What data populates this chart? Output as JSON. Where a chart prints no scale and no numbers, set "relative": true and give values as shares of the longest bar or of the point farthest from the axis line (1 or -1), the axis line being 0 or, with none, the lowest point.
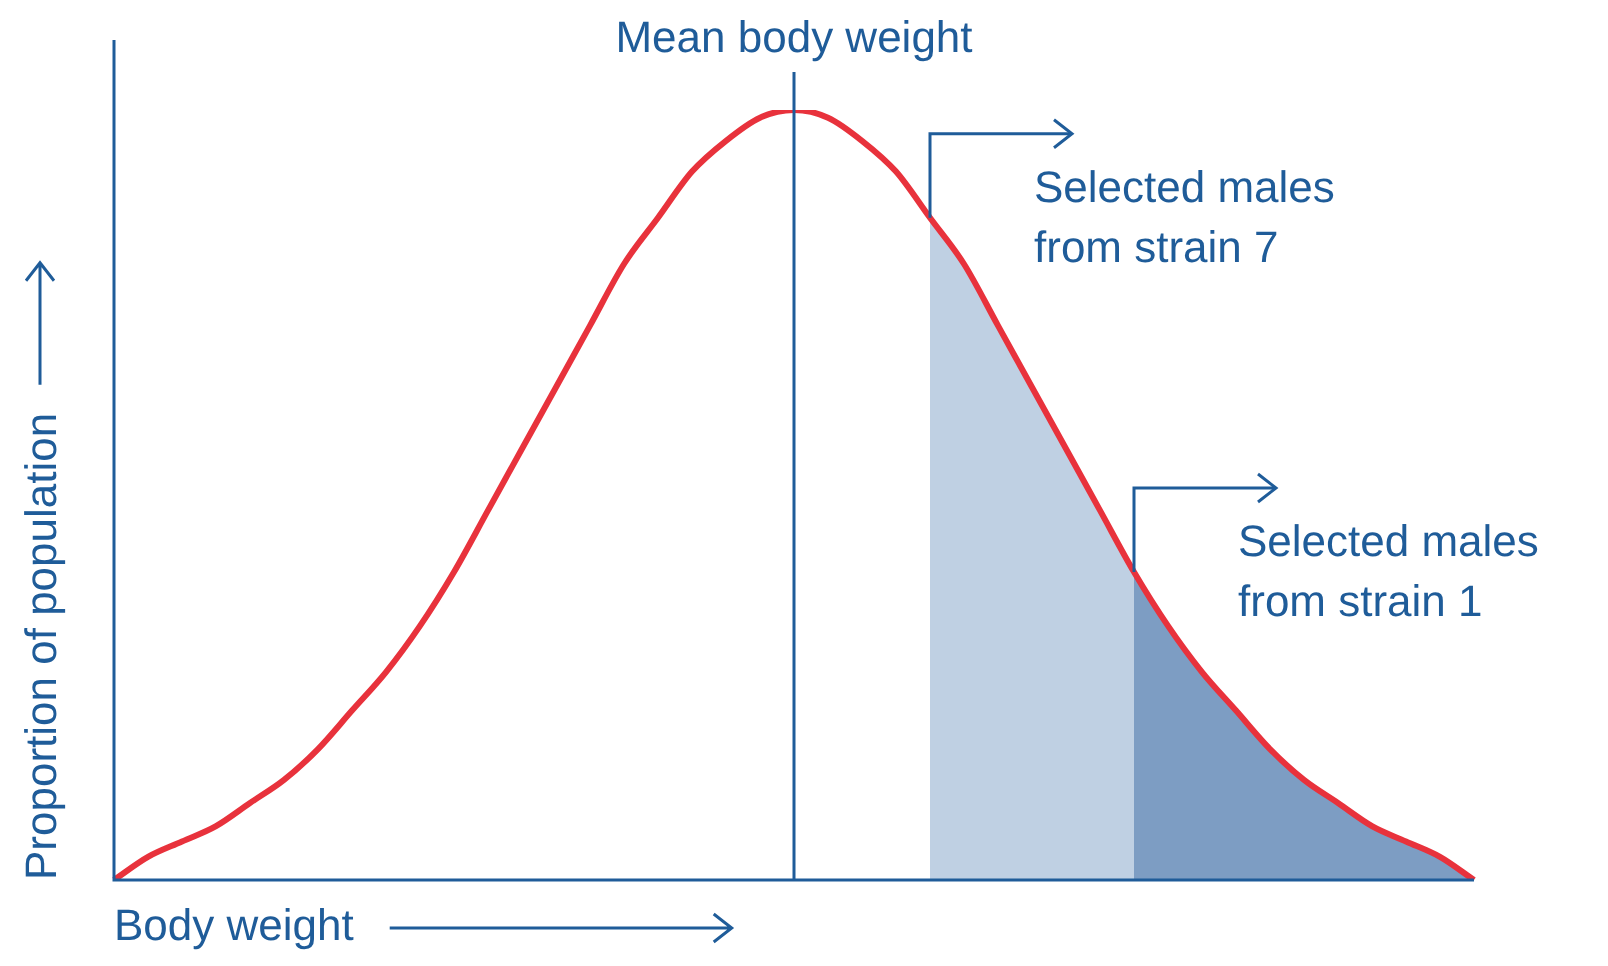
{
  "chart_data": {
    "type": "line",
    "xlabel": "Body weight",
    "ylabel": "Proportion of population",
    "relative": true,
    "legend": "right",
    "categories": [
      null,
      null,
      null,
      null,
      null,
      null,
      null,
      null,
      null,
      null,
      null,
      null,
      null,
      null,
      null,
      null,
      null,
      null,
      null,
      null,
      null,
      null,
      null,
      null,
      null,
      null,
      null,
      null,
      null,
      null,
      null,
      null,
      null,
      null,
      null,
      null,
      null,
      null,
      null,
      null,
      null
    ],
    "series": [
      {
        "color": "#e8323c",
        "values": [
          0,
          0.03,
          0.05,
          0.07,
          0.1,
          0.13,
          0.17,
          0.22,
          0.27,
          0.33,
          0.4,
          0.48,
          0.56,
          0.64,
          0.72,
          0.8,
          0.86,
          0.92,
          0.96,
          0.99,
          1,
          0.99,
          0.96,
          0.92,
          0.86,
          0.8,
          0.72,
          0.64,
          0.56,
          0.48,
          0.4,
          0.33,
          0.27,
          0.22,
          0.17,
          0.13,
          0.1,
          0.07,
          0.05,
          0.03,
          0
        ]
      },
      {
        "type": "area",
        "name": "Selected males from strain 7",
        "color": "#bfd0e3",
        "values": [
          null,
          null,
          null,
          null,
          null,
          null,
          null,
          null,
          null,
          null,
          null,
          null,
          null,
          null,
          null,
          null,
          null,
          null,
          null,
          null,
          null,
          null,
          null,
          null,
          0.86,
          0.8,
          0.72,
          0.64,
          0.56,
          0.48,
          0.4,
          0.33,
          0.27,
          0.22,
          0.17,
          0.13,
          0.1,
          0.07,
          0.05,
          0.03,
          0
        ]
      },
      {
        "type": "area",
        "name": "Selected males from strain 1",
        "color": "#7d9dc3",
        "values": [
          null,
          null,
          null,
          null,
          null,
          null,
          null,
          null,
          null,
          null,
          null,
          null,
          null,
          null,
          null,
          null,
          null,
          null,
          null,
          null,
          null,
          null,
          null,
          null,
          null,
          null,
          null,
          null,
          null,
          null,
          0.4,
          0.33,
          0.27,
          0.22,
          0.17,
          0.13,
          0.1,
          0.07,
          0.05,
          0.03,
          0
        ]
      }
    ],
    "annotations": [
      "Mean body weight"
    ]
  }
}
